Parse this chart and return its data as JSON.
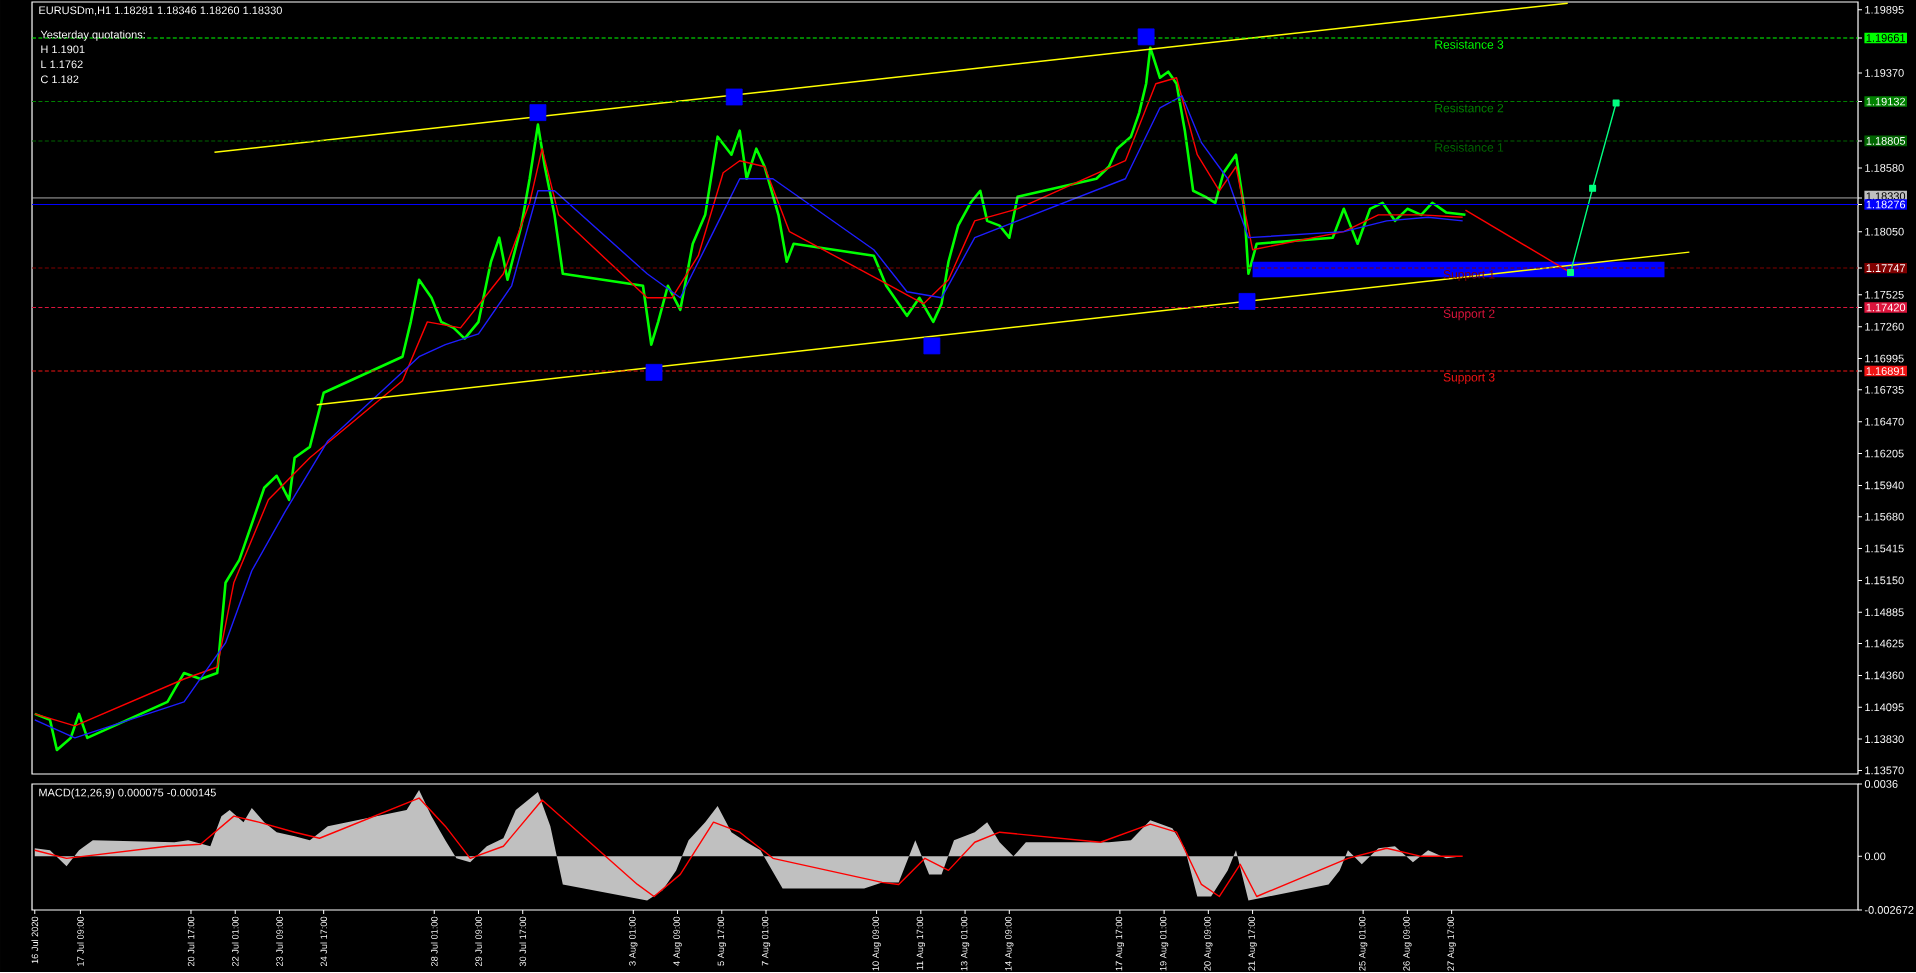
{
  "chart_data": [
    {
      "type": "line",
      "title": "EURUSDm,H1 1.18281 1.18346 1.18260 1.18330",
      "annotations": [
        "Yesterday quotations:",
        "H 1.1901",
        "L 1.1762",
        "C 1.182"
      ],
      "xlim": [
        "2020-07-15T22:00",
        "2020-09-08T23:00"
      ],
      "ylim": [
        1.1354,
        1.1996
      ],
      "tick_labels": "y",
      "yticks": [
        {
          "value": 1.19895,
          "label": "1.19895"
        },
        {
          "value": 1.19661,
          "label": "1.19661"
        },
        {
          "value": 1.1937,
          "label": "1.19370"
        },
        {
          "value": 1.19132,
          "label": "1.19132"
        },
        {
          "value": 1.18805,
          "label": "1.18805"
        },
        {
          "value": 1.1858,
          "label": "1.18580"
        },
        {
          "value": 1.1833,
          "label": "1.18330"
        },
        {
          "value": 1.18276,
          "label": "1.18276"
        },
        {
          "value": 1.1805,
          "label": "1.18050"
        },
        {
          "value": 1.17747,
          "label": "1.17747"
        },
        {
          "value": 1.17525,
          "label": "1.17525"
        },
        {
          "value": 1.1742,
          "label": "1.17420"
        },
        {
          "value": 1.1726,
          "label": "1.17260"
        },
        {
          "value": 1.16995,
          "label": "1.16995"
        },
        {
          "value": 1.16891,
          "label": "1.16891"
        },
        {
          "value": 1.16735,
          "label": "1.16735"
        },
        {
          "value": 1.1647,
          "label": "1.16470"
        },
        {
          "value": 1.16205,
          "label": "1.16205"
        },
        {
          "value": 1.1594,
          "label": "1.15940"
        },
        {
          "value": 1.1568,
          "label": "1.15680"
        },
        {
          "value": 1.15415,
          "label": "1.15415"
        },
        {
          "value": 1.1515,
          "label": "1.15150"
        },
        {
          "value": 1.14885,
          "label": "1.14885"
        },
        {
          "value": 1.14625,
          "label": "1.14625"
        },
        {
          "value": 1.1436,
          "label": "1.14360"
        },
        {
          "value": 1.14095,
          "label": "1.14095"
        },
        {
          "value": 1.1383,
          "label": "1.13830"
        },
        {
          "value": 1.1357,
          "label": "1.13570"
        }
      ],
      "ref_lines": [
        {
          "axis": "y",
          "value": 1.19661,
          "label": "Resistance 3",
          "color": "#00ff00",
          "line_style": "dashed"
        },
        {
          "axis": "y",
          "value": 1.19132,
          "label": "Resistance 2",
          "color": "#008000",
          "line_style": "dashed"
        },
        {
          "axis": "y",
          "value": 1.18805,
          "label": "Resistance 1",
          "color": "#006400",
          "line_style": "dashed"
        },
        {
          "axis": "y",
          "value": 1.1833,
          "color": "#c0c0c0",
          "line_style": "solid"
        },
        {
          "axis": "y",
          "value": 1.18276,
          "color": "#0000ff",
          "line_style": "solid"
        },
        {
          "axis": "y",
          "value": 1.17747,
          "label": "Support 1",
          "color": "#800000",
          "line_style": "dashed"
        },
        {
          "axis": "y",
          "value": 1.1742,
          "label": "Support 2",
          "color": "#dc143c",
          "line_style": "dashed"
        },
        {
          "axis": "y",
          "value": 1.16891,
          "label": "Support 3",
          "color": "#f01414",
          "line_style": "dashed"
        }
      ],
      "series": [
        {
          "color": "#00ff00",
          "x": [
            "2020-07-16T00:00",
            "2020-07-16T11:00",
            "2020-07-16T16:00",
            "2020-07-17T02:00",
            "2020-07-17T08:00",
            "2020-07-17T14:00",
            "2020-07-20T00:00",
            "2020-07-20T12:00",
            "2020-07-21T00:00",
            "2020-07-21T12:00",
            "2020-07-21T18:00",
            "2020-07-22T04:00",
            "2020-07-22T13:00",
            "2020-07-22T22:00",
            "2020-07-23T07:00",
            "2020-07-23T16:00",
            "2020-07-23T20:00",
            "2020-07-24T07:00",
            "2020-07-24T17:00",
            "2020-07-27T02:00",
            "2020-07-27T08:00",
            "2020-07-27T14:00",
            "2020-07-27T23:00",
            "2020-07-28T06:00",
            "2020-07-28T15:00",
            "2020-07-28T23:00",
            "2020-07-29T09:00",
            "2020-07-29T18:00",
            "2020-07-30T00:00",
            "2020-07-30T06:00",
            "2020-07-30T16:00",
            "2020-07-30T22:00",
            "2020-07-31T04:00",
            "2020-07-31T09:00",
            "2020-07-31T16:00",
            "2020-07-31T22:00",
            "2020-08-03T08:00",
            "2020-08-03T14:00",
            "2020-08-03T19:00",
            "2020-08-04T02:00",
            "2020-08-04T11:00",
            "2020-08-04T20:00",
            "2020-08-05T05:00",
            "2020-08-05T14:00",
            "2020-08-06T00:00",
            "2020-08-06T06:00",
            "2020-08-06T11:00",
            "2020-08-06T18:00",
            "2020-08-07T00:00",
            "2020-08-07T10:00",
            "2020-08-07T16:00",
            "2020-08-07T21:00",
            "2020-08-10T07:00",
            "2020-08-10T16:00",
            "2020-08-11T01:00",
            "2020-08-11T07:00",
            "2020-08-11T16:00",
            "2020-08-12T02:00",
            "2020-08-12T08:00",
            "2020-08-12T13:00",
            "2020-08-12T20:00",
            "2020-08-13T05:00",
            "2020-08-13T12:00",
            "2020-08-13T17:00",
            "2020-08-14T02:00",
            "2020-08-14T09:00",
            "2020-08-14T15:00",
            "2020-08-17T00:00",
            "2020-08-17T09:00",
            "2020-08-17T15:00",
            "2020-08-18T01:00",
            "2020-08-18T07:00",
            "2020-08-18T12:00",
            "2020-08-18T15:00",
            "2020-08-18T22:00",
            "2020-08-19T04:00",
            "2020-08-19T10:00",
            "2020-08-19T16:00",
            "2020-08-19T22:00",
            "2020-08-20T07:00",
            "2020-08-20T14:00",
            "2020-08-20T20:00",
            "2020-08-21T05:00",
            "2020-08-21T11:00",
            "2020-08-21T14:00",
            "2020-08-21T20:00",
            "2020-08-24T03:00",
            "2020-08-24T11:00",
            "2020-08-24T21:00",
            "2020-08-25T06:00",
            "2020-08-25T15:00",
            "2020-08-26T00:00",
            "2020-08-26T09:00",
            "2020-08-26T19:00",
            "2020-08-27T03:00",
            "2020-08-27T13:00",
            "2020-08-28T03:00"
          ],
          "values": [
            1.1404,
            1.1399,
            1.1374,
            1.1384,
            1.1404,
            1.1384,
            1.1414,
            1.1438,
            1.1433,
            1.1438,
            1.1513,
            1.1532,
            1.1562,
            1.1592,
            1.1602,
            1.1582,
            1.1617,
            1.1626,
            1.1671,
            1.1701,
            1.173,
            1.1765,
            1.175,
            1.173,
            1.1725,
            1.1716,
            1.173,
            1.178,
            1.18,
            1.1765,
            1.181,
            1.1849,
            1.1894,
            1.1859,
            1.1819,
            1.177,
            1.176,
            1.1711,
            1.173,
            1.176,
            1.174,
            1.1795,
            1.1819,
            1.1884,
            1.1869,
            1.1889,
            1.1849,
            1.1874,
            1.1859,
            1.1819,
            1.178,
            1.1795,
            1.1785,
            1.176,
            1.1745,
            1.1735,
            1.175,
            1.173,
            1.1745,
            1.178,
            1.181,
            1.1829,
            1.1839,
            1.1814,
            1.181,
            1.18,
            1.1834,
            1.1849,
            1.1859,
            1.1874,
            1.1884,
            1.1904,
            1.1928,
            1.1958,
            1.1933,
            1.1938,
            1.1928,
            1.1889,
            1.1839,
            1.1834,
            1.1829,
            1.1854,
            1.1869,
            1.1824,
            1.177,
            1.1795,
            1.18,
            1.1824,
            1.1795,
            1.1824,
            1.1829,
            1.1814,
            1.1824,
            1.1819,
            1.1829,
            1.1821,
            1.1819
          ]
        },
        {
          "color": "#ff0000",
          "x": [
            "2020-07-16T00:00",
            "2020-07-17T05:00",
            "2020-07-20T12:00",
            "2020-07-21T12:00",
            "2020-07-22T00:00",
            "2020-07-23T01:00",
            "2020-07-24T07:00",
            "2020-07-27T02:00",
            "2020-07-27T20:00",
            "2020-07-28T20:00",
            "2020-07-30T03:00",
            "2020-07-30T22:00",
            "2020-07-31T07:00",
            "2020-07-31T19:00",
            "2020-08-03T11:00",
            "2020-08-04T05:00",
            "2020-08-05T00:00",
            "2020-08-05T18:00",
            "2020-08-06T06:00",
            "2020-08-07T00:00",
            "2020-08-07T18:00",
            "2020-08-10T19:00",
            "2020-08-11T19:00",
            "2020-08-12T13:00",
            "2020-08-13T08:00",
            "2020-08-14T15:00",
            "2020-08-17T21:00",
            "2020-08-18T19:00",
            "2020-08-19T10:00",
            "2020-08-20T01:00",
            "2020-08-20T17:00",
            "2020-08-21T05:00",
            "2020-08-21T17:00",
            "2020-08-24T11:00",
            "2020-08-25T12:00",
            "2020-08-26T19:00",
            "2020-08-28T01:00"
          ],
          "values": [
            1.1404,
            1.1394,
            1.1433,
            1.1443,
            1.1513,
            1.1582,
            1.1617,
            1.1681,
            1.173,
            1.1725,
            1.177,
            1.1829,
            1.1874,
            1.1819,
            1.175,
            1.175,
            1.1785,
            1.1854,
            1.1864,
            1.1859,
            1.1805,
            1.176,
            1.1745,
            1.1765,
            1.1814,
            1.1824,
            1.1864,
            1.1928,
            1.1933,
            1.1869,
            1.1839,
            1.1859,
            1.179,
            1.1805,
            1.1819,
            1.1819,
            1.1817
          ]
        },
        {
          "color": "#1e1eff",
          "x": [
            "2020-07-16T00:00",
            "2020-07-17T05:00",
            "2020-07-20T12:00",
            "2020-07-21T18:00",
            "2020-07-22T13:00",
            "2020-07-23T13:00",
            "2020-07-24T20:00",
            "2020-07-27T14:00",
            "2020-07-28T09:00",
            "2020-07-29T09:00",
            "2020-07-30T09:00",
            "2020-07-31T04:00",
            "2020-07-31T16:00",
            "2020-08-03T11:00",
            "2020-08-04T11:00",
            "2020-08-05T11:00",
            "2020-08-06T06:00",
            "2020-08-07T06:00",
            "2020-08-10T07:00",
            "2020-08-11T07:00",
            "2020-08-12T08:00",
            "2020-08-13T08:00",
            "2020-08-14T15:00",
            "2020-08-17T21:00",
            "2020-08-18T22:00",
            "2020-08-19T14:00",
            "2020-08-20T04:00",
            "2020-08-20T23:00",
            "2020-08-21T14:00",
            "2020-08-24T11:00",
            "2020-08-25T18:00",
            "2020-08-27T00:00",
            "2020-08-28T01:00"
          ],
          "values": [
            1.1399,
            1.1384,
            1.1414,
            1.1463,
            1.1523,
            1.1572,
            1.1631,
            1.1701,
            1.1711,
            1.172,
            1.176,
            1.1839,
            1.1839,
            1.177,
            1.175,
            1.1805,
            1.1849,
            1.1849,
            1.179,
            1.1755,
            1.175,
            1.18,
            1.1814,
            1.1849,
            1.1908,
            1.1918,
            1.1879,
            1.1849,
            1.18,
            1.1805,
            1.1814,
            1.1817,
            1.1814
          ]
        },
        {
          "color": "#0000ff",
          "x": [
            "2020-08-21T17:00",
            "2020-09-03T03:00"
          ],
          "values": [
            null,
            null
          ],
          "lower": [
            1.1767,
            1.1767
          ],
          "upper": [
            1.178,
            1.178
          ]
        },
        {
          "type": "scatter",
          "color": "#0000ff",
          "marker": "square",
          "x": [
            "2020-07-31T04:00",
            "2020-08-06T02:00",
            "2020-08-18T12:00",
            "2020-08-03T16:00",
            "2020-08-12T01:00",
            "2020-08-21T13:00"
          ],
          "values": [
            1.1904,
            1.1917,
            1.1967,
            1.1688,
            1.171,
            1.1747
          ]
        },
        {
          "color": "#ffff00",
          "x": [
            "2020-07-21T10:00",
            "2020-08-31T05:00"
          ],
          "values": [
            1.1871,
            1.1995
          ]
        },
        {
          "color": "#ffff00",
          "x": [
            "2020-07-24T12:00",
            "2020-09-03T21:00"
          ],
          "values": [
            1.1661,
            1.1788
          ]
        },
        {
          "color": "#ff0000",
          "x": [
            "2020-08-28T03:00",
            "2020-08-31T07:00"
          ],
          "values": [
            1.1823,
            1.1771
          ]
        },
        {
          "color": "#00ff80",
          "marker": "square",
          "x": [
            "2020-08-31T07:00",
            "2020-08-31T23:00",
            "2020-09-01T16:00"
          ],
          "values": [
            1.1771,
            1.1841,
            1.1912
          ]
        }
      ]
    },
    {
      "type": "area",
      "title": "MACD(12,26,9) 0.000075 -0.000145",
      "xlim": [
        "2020-07-15T22:00",
        "2020-09-08T23:00"
      ],
      "ylim": [
        -0.002672,
        0.0036
      ],
      "xticks": [
        {
          "value": "2020-07-16T00:00",
          "label": "16 Jul 2020"
        },
        {
          "value": "2020-07-17T09:00",
          "label": "17 Jul 09:00"
        },
        {
          "value": "2020-07-20T17:00",
          "label": "20 Jul 17:00"
        },
        {
          "value": "2020-07-22T01:00",
          "label": "22 Jul 01:00"
        },
        {
          "value": "2020-07-23T09:00",
          "label": "23 Jul 09:00"
        },
        {
          "value": "2020-07-24T17:00",
          "label": "24 Jul 17:00"
        },
        {
          "value": "2020-07-28T01:00",
          "label": "28 Jul 01:00"
        },
        {
          "value": "2020-07-29T09:00",
          "label": "29 Jul 09:00"
        },
        {
          "value": "2020-07-30T17:00",
          "label": "30 Jul 17:00"
        },
        {
          "value": "2020-08-03T01:00",
          "label": "3 Aug 01:00"
        },
        {
          "value": "2020-08-04T09:00",
          "label": "4 Aug 09:00"
        },
        {
          "value": "2020-08-05T17:00",
          "label": "5 Aug 17:00"
        },
        {
          "value": "2020-08-07T01:00",
          "label": "7 Aug 01:00"
        },
        {
          "value": "2020-08-10T09:00",
          "label": "10 Aug 09:00"
        },
        {
          "value": "2020-08-11T17:00",
          "label": "11 Aug 17:00"
        },
        {
          "value": "2020-08-13T01:00",
          "label": "13 Aug 01:00"
        },
        {
          "value": "2020-08-14T09:00",
          "label": "14 Aug 09:00"
        },
        {
          "value": "2020-08-17T17:00",
          "label": "17 Aug 17:00"
        },
        {
          "value": "2020-08-19T01:00",
          "label": "19 Aug 01:00"
        },
        {
          "value": "2020-08-20T09:00",
          "label": "20 Aug 09:00"
        },
        {
          "value": "2020-08-21T17:00",
          "label": "21 Aug 17:00"
        },
        {
          "value": "2020-08-25T01:00",
          "label": "25 Aug 01:00"
        },
        {
          "value": "2020-08-26T09:00",
          "label": "26 Aug 09:00"
        },
        {
          "value": "2020-08-27T17:00",
          "label": "27 Aug 17:00"
        }
      ],
      "yticks": [
        {
          "value": 0.0036,
          "label": "0.0036"
        },
        {
          "value": 0,
          "label": "0.00"
        },
        {
          "value": -0.002672,
          "label": "-0.002672"
        }
      ],
      "series": [
        {
          "color": "#c0c0c0",
          "x": [
            "2020-07-16T00:00",
            "2020-07-16T11:00",
            "2020-07-16T23:00",
            "2020-07-17T08:00",
            "2020-07-17T18:00",
            "2020-07-20T05:00",
            "2020-07-20T15:00",
            "2020-07-21T07:00",
            "2020-07-21T15:00",
            "2020-07-21T21:00",
            "2020-07-22T07:00",
            "2020-07-22T13:00",
            "2020-07-22T22:00",
            "2020-07-23T07:00",
            "2020-07-23T20:00",
            "2020-07-24T07:00",
            "2020-07-24T20:00",
            "2020-07-27T05:00",
            "2020-07-27T14:00",
            "2020-07-27T23:00",
            "2020-07-28T09:00",
            "2020-07-28T17:00",
            "2020-07-29T03:00",
            "2020-07-29T15:00",
            "2020-07-30T03:00",
            "2020-07-30T12:00",
            "2020-07-31T04:00",
            "2020-07-31T13:00",
            "2020-07-31T22:00",
            "2020-08-03T11:00",
            "2020-08-03T22:00",
            "2020-08-04T08:00",
            "2020-08-04T17:00",
            "2020-08-05T05:00",
            "2020-08-05T14:00",
            "2020-08-06T00:00",
            "2020-08-06T11:00",
            "2020-08-06T21:00",
            "2020-08-07T13:00",
            "2020-08-10T00:00",
            "2020-08-10T13:00",
            "2020-08-11T01:00",
            "2020-08-11T13:00",
            "2020-08-11T23:00",
            "2020-08-12T08:00",
            "2020-08-12T17:00",
            "2020-08-13T08:00",
            "2020-08-13T17:00",
            "2020-08-14T02:00",
            "2020-08-14T12:00",
            "2020-08-14T21:00",
            "2020-08-17T09:00",
            "2020-08-18T01:00",
            "2020-08-18T15:00",
            "2020-08-19T07:00",
            "2020-08-19T16:00",
            "2020-08-20T01:00",
            "2020-08-20T11:00",
            "2020-08-20T23:00",
            "2020-08-21T05:00",
            "2020-08-21T14:00",
            "2020-08-24T00:00",
            "2020-08-24T08:00",
            "2020-08-24T14:00",
            "2020-08-25T00:00",
            "2020-08-25T12:00",
            "2020-08-26T00:00",
            "2020-08-26T13:00",
            "2020-08-27T00:00",
            "2020-08-27T13:00",
            "2020-08-28T01:00"
          ],
          "values": [
            0.0004,
            0.0003,
            -0.0005,
            0.0003,
            0.0008,
            0.0007,
            0.0008,
            0.0005,
            0.002,
            0.0023,
            0.0017,
            0.0024,
            0.0017,
            0.0012,
            0.001,
            0.0008,
            0.0015,
            0.0023,
            0.0033,
            0.002,
            0.0008,
            -0.0001,
            -0.0003,
            0.0005,
            0.0009,
            0.0023,
            0.0032,
            0.0015,
            -0.0014,
            -0.0022,
            -0.0017,
            -0.0007,
            0.0008,
            0.0017,
            0.0025,
            0.0012,
            0.0007,
            0.0003,
            -0.0016,
            -0.0016,
            -0.0013,
            -0.0013,
            0.0008,
            -0.0009,
            -0.0009,
            0.0008,
            0.0012,
            0.0017,
            0.0007,
            0.0,
            0.0007,
            0.0007,
            0.0008,
            0.0018,
            0.0014,
            0.0004,
            -0.002,
            -0.002,
            -0.0007,
            0.0003,
            -0.0022,
            -0.0014,
            -0.0007,
            0.0003,
            -0.0004,
            0.0004,
            0.0005,
            -0.0003,
            0.0003,
            -0.0001,
            0.0
          ]
        },
        {
          "type": "line",
          "color": "#ff0000",
          "x": [
            "2020-07-16T00:00",
            "2020-07-16T23:00",
            "2020-07-20T00:00",
            "2020-07-21T00:00",
            "2020-07-22T00:00",
            "2020-07-22T18:00",
            "2020-07-23T20:00",
            "2020-07-24T14:00",
            "2020-07-27T14:00",
            "2020-07-28T09:00",
            "2020-07-29T03:00",
            "2020-07-30T03:00",
            "2020-07-31T07:00",
            "2020-08-03T04:00",
            "2020-08-03T16:00",
            "2020-08-04T11:00",
            "2020-08-05T11:00",
            "2020-08-06T06:00",
            "2020-08-07T06:00",
            "2020-08-10T13:00",
            "2020-08-11T01:00",
            "2020-08-11T20:00",
            "2020-08-12T13:00",
            "2020-08-13T08:00",
            "2020-08-14T02:00",
            "2020-08-17T03:00",
            "2020-08-18T15:00",
            "2020-08-19T10:00",
            "2020-08-20T04:00",
            "2020-08-20T17:00",
            "2020-08-21T08:00",
            "2020-08-21T20:00",
            "2020-08-24T14:00",
            "2020-08-25T18:00",
            "2020-08-26T19:00",
            "2020-08-28T01:00"
          ],
          "values": [
            0.0003,
            -0.0001,
            0.0005,
            0.0006,
            0.002,
            0.0017,
            0.0012,
            0.0009,
            0.0029,
            0.0015,
            -0.0001,
            0.0005,
            0.0028,
            -0.0014,
            -0.002,
            -0.0009,
            0.0017,
            0.0012,
            -0.0001,
            -0.0013,
            -0.0014,
            -0.0001,
            -0.0007,
            0.0007,
            0.0012,
            0.0007,
            0.0016,
            0.0012,
            -0.0014,
            -0.002,
            -0.0004,
            -0.002,
            -0.0001,
            0.0004,
            0.0,
            0.0
          ]
        }
      ]
    }
  ]
}
